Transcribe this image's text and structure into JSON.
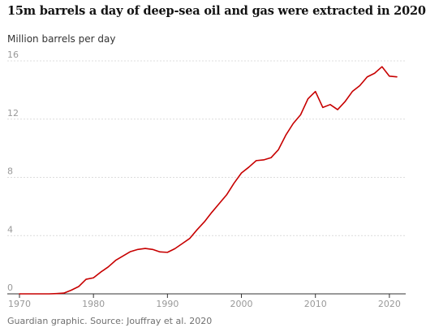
{
  "title": "15m barrels a day of deep-sea oil and gas were extracted in 2020",
  "source": "Guardian graphic. Source: Jouffray et al. 2020",
  "colors": {
    "line": "#c70000",
    "grid": "#dcdcdc",
    "baseline": "#333333",
    "tick_text": "#999999"
  },
  "chart_data": {
    "type": "line",
    "title": "15m barrels a day of deep-sea oil and gas were extracted in 2020",
    "xlabel": "",
    "ylabel": "Million barrels per day",
    "xlim": [
      1970,
      2021
    ],
    "ylim": [
      0,
      16
    ],
    "grid": true,
    "legend": "none",
    "x_ticks": [
      1970,
      1980,
      1990,
      2000,
      2010,
      2020
    ],
    "y_ticks": [
      0,
      4,
      8,
      12,
      16
    ],
    "x_tick_labels": [
      "1970",
      "1980",
      "1990",
      "2000",
      "2010",
      "2020"
    ],
    "y_tick_labels": [
      "0",
      "4",
      "8",
      "12",
      "16"
    ],
    "series": [
      {
        "x": [
          1970,
          1971,
          1972,
          1973,
          1974,
          1975,
          1976,
          1977,
          1978,
          1979,
          1980,
          1981,
          1982,
          1983,
          1984,
          1985,
          1986,
          1987,
          1988,
          1989,
          1990,
          1991,
          1992,
          1993,
          1994,
          1995,
          1996,
          1997,
          1998,
          1999,
          2000,
          2001,
          2002,
          2003,
          2004,
          2005,
          2006,
          2007,
          2008,
          2009,
          2010,
          2011,
          2012,
          2013,
          2014,
          2015,
          2016,
          2017,
          2018,
          2019,
          2020,
          2021
        ],
        "values": [
          0,
          0,
          0,
          0,
          0,
          0.02,
          0.05,
          0.25,
          0.5,
          1.0,
          1.1,
          1.5,
          1.85,
          2.3,
          2.6,
          2.9,
          3.05,
          3.12,
          3.05,
          2.88,
          2.85,
          3.1,
          3.45,
          3.8,
          4.4,
          4.95,
          5.6,
          6.2,
          6.8,
          7.6,
          8.3,
          8.7,
          9.15,
          9.2,
          9.35,
          9.9,
          10.9,
          11.7,
          12.3,
          13.4,
          13.9,
          12.8,
          13.0,
          12.65,
          13.2,
          13.9,
          14.3,
          14.9,
          15.15,
          15.6,
          14.95,
          14.9
        ]
      }
    ]
  }
}
